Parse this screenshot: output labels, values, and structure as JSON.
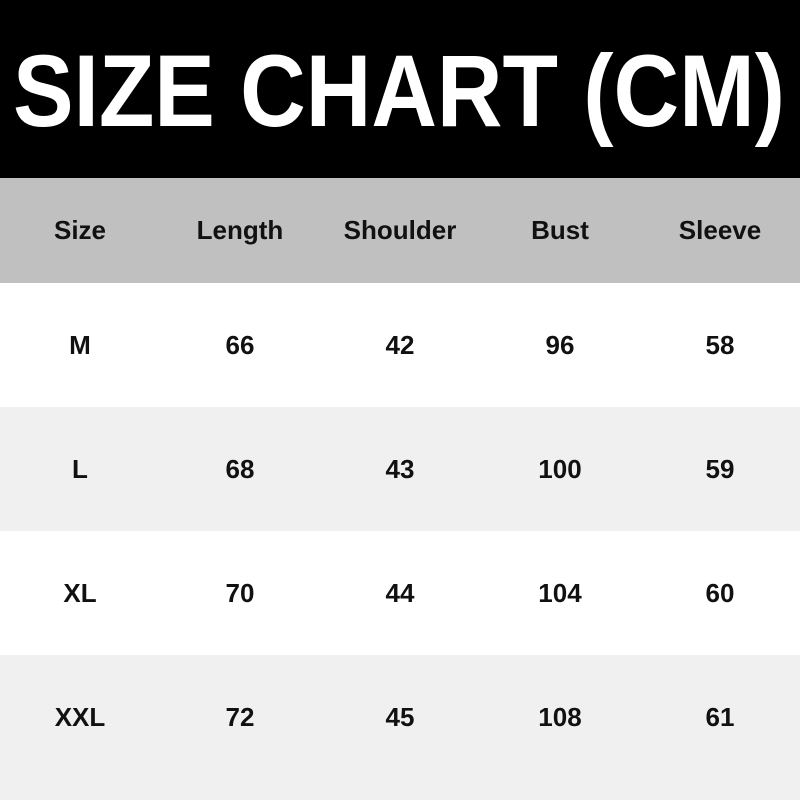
{
  "title": "SIZE CHART (CM)",
  "colors": {
    "title_bg": "#000000",
    "title_text": "#ffffff",
    "header_bg": "#c0c0c0",
    "alt_row_bg": "#f0f0f0"
  },
  "chart_data": {
    "type": "table",
    "title": "SIZE CHART (CM)",
    "columns": [
      "Size",
      "Length",
      "Shoulder",
      "Bust",
      "Sleeve"
    ],
    "rows": [
      [
        "M",
        "66",
        "42",
        "96",
        "58"
      ],
      [
        "L",
        "68",
        "43",
        "100",
        "59"
      ],
      [
        "XL",
        "70",
        "44",
        "104",
        "60"
      ],
      [
        "XXL",
        "72",
        "45",
        "108",
        "61"
      ]
    ]
  }
}
